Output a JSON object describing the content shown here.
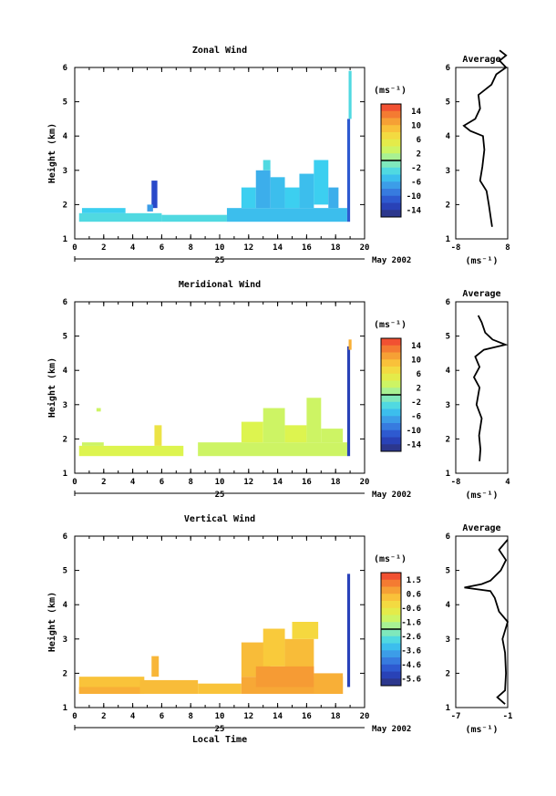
{
  "chart_data": [
    {
      "type": "heatmap",
      "title": "Zonal Wind",
      "ylabel": "Height (km)",
      "xlabel": "",
      "xlim": [
        0,
        20
      ],
      "ylim": [
        1,
        6
      ],
      "x_ticks": [
        "0",
        "2",
        "4",
        "6",
        "8",
        "10",
        "12",
        "14",
        "16",
        "18",
        "20"
      ],
      "y_ticks": [
        "1",
        "2",
        "3",
        "4",
        "5",
        "6"
      ],
      "day_label": "25",
      "date_label": "May 2002",
      "colorbar": {
        "unit": "(ms⁻¹)",
        "ticks": [
          "14",
          "10",
          "6",
          "2",
          "-2",
          "-6",
          "-10",
          "-14"
        ],
        "range": [
          -16,
          16
        ]
      },
      "profile": {
        "title": "Average",
        "xlabel": "(ms⁻¹)",
        "x_ticks": [
          "-8",
          "8"
        ],
        "xlim": [
          -8,
          8
        ],
        "y_ticks": [
          "1",
          "2",
          "3",
          "4",
          "5",
          "6"
        ],
        "ylim": [
          1,
          6
        ],
        "points": [
          [
            3.2,
            1.35
          ],
          [
            2.8,
            1.6
          ],
          [
            2.2,
            2.0
          ],
          [
            1.5,
            2.4
          ],
          [
            -0.5,
            2.7
          ],
          [
            0.2,
            3.1
          ],
          [
            0.8,
            3.6
          ],
          [
            0.4,
            4.0
          ],
          [
            -3.5,
            4.15
          ],
          [
            -5.5,
            4.3
          ],
          [
            -2.0,
            4.5
          ],
          [
            -0.5,
            4.8
          ],
          [
            -1.0,
            5.2
          ],
          [
            3.0,
            5.5
          ],
          [
            4.5,
            5.8
          ],
          [
            7.5,
            6.0
          ],
          [
            5.5,
            6.2
          ],
          [
            7.5,
            6.35
          ],
          [
            5.5,
            6.5
          ]
        ]
      },
      "rects": [
        {
          "x0": 0.3,
          "x1": 6.0,
          "y0": 1.5,
          "y1": 1.75,
          "v": -3
        },
        {
          "x0": 0.5,
          "x1": 3.5,
          "y0": 1.75,
          "y1": 1.9,
          "v": -4
        },
        {
          "x0": 5.3,
          "x1": 5.7,
          "y0": 1.9,
          "y1": 2.7,
          "v": -12
        },
        {
          "x0": 5.0,
          "x1": 5.4,
          "y0": 1.8,
          "y1": 2.0,
          "v": -7
        },
        {
          "x0": 6.0,
          "x1": 10.5,
          "y0": 1.5,
          "y1": 1.7,
          "v": -3
        },
        {
          "x0": 10.5,
          "x1": 18.8,
          "y0": 1.5,
          "y1": 1.9,
          "v": -5
        },
        {
          "x0": 11.5,
          "x1": 12.5,
          "y0": 1.9,
          "y1": 2.5,
          "v": -4
        },
        {
          "x0": 12.5,
          "x1": 13.5,
          "y0": 1.9,
          "y1": 3.0,
          "v": -6
        },
        {
          "x0": 13.5,
          "x1": 14.5,
          "y0": 1.9,
          "y1": 2.8,
          "v": -5
        },
        {
          "x0": 14.5,
          "x1": 15.5,
          "y0": 1.9,
          "y1": 2.5,
          "v": -4
        },
        {
          "x0": 15.5,
          "x1": 16.5,
          "y0": 1.9,
          "y1": 2.9,
          "v": -5
        },
        {
          "x0": 16.5,
          "x1": 17.5,
          "y0": 2.0,
          "y1": 3.3,
          "v": -4
        },
        {
          "x0": 17.5,
          "x1": 18.2,
          "y0": 1.9,
          "y1": 2.5,
          "v": -6
        },
        {
          "x0": 13.0,
          "x1": 13.5,
          "y0": 3.0,
          "y1": 3.3,
          "v": -3
        },
        {
          "x0": 18.8,
          "x1": 19.0,
          "y0": 1.5,
          "y1": 4.5,
          "v": -11
        },
        {
          "x0": 18.9,
          "x1": 19.1,
          "y0": 4.5,
          "y1": 5.9,
          "v": -3
        }
      ]
    },
    {
      "type": "heatmap",
      "title": "Meridional Wind",
      "ylabel": "Height (km)",
      "xlabel": "",
      "xlim": [
        0,
        20
      ],
      "ylim": [
        1,
        6
      ],
      "x_ticks": [
        "0",
        "2",
        "4",
        "6",
        "8",
        "10",
        "12",
        "14",
        "16",
        "18",
        "20"
      ],
      "y_ticks": [
        "1",
        "2",
        "3",
        "4",
        "5",
        "6"
      ],
      "day_label": "25",
      "date_label": "May 2002",
      "colorbar": {
        "unit": "(ms⁻¹)",
        "ticks": [
          "14",
          "10",
          "6",
          "2",
          "-2",
          "-6",
          "-10",
          "-14"
        ],
        "range": [
          -16,
          16
        ]
      },
      "profile": {
        "title": "Average",
        "xlabel": "(ms⁻¹)",
        "x_ticks": [
          "-8",
          "4"
        ],
        "xlim": [
          -8,
          4
        ],
        "y_ticks": [
          "1",
          "2",
          "3",
          "4",
          "5",
          "6"
        ],
        "ylim": [
          1,
          6
        ],
        "points": [
          [
            -2.5,
            1.35
          ],
          [
            -2.3,
            1.7
          ],
          [
            -2.6,
            2.1
          ],
          [
            -2.0,
            2.6
          ],
          [
            -3.2,
            3.0
          ],
          [
            -2.5,
            3.5
          ],
          [
            -3.8,
            3.8
          ],
          [
            -2.5,
            4.1
          ],
          [
            -3.5,
            4.4
          ],
          [
            -1.5,
            4.6
          ],
          [
            3.5,
            4.75
          ],
          [
            0.5,
            4.9
          ],
          [
            -1.2,
            5.1
          ],
          [
            -2.0,
            5.4
          ],
          [
            -2.8,
            5.6
          ]
        ]
      },
      "rects": [
        {
          "x0": 0.3,
          "x1": 7.5,
          "y0": 1.5,
          "y1": 1.8,
          "v": 4
        },
        {
          "x0": 0.5,
          "x1": 2.0,
          "y0": 1.8,
          "y1": 1.9,
          "v": 3
        },
        {
          "x0": 5.5,
          "x1": 6.0,
          "y0": 1.8,
          "y1": 2.4,
          "v": 6
        },
        {
          "x0": 1.5,
          "x1": 1.8,
          "y0": 2.8,
          "y1": 2.9,
          "v": 3
        },
        {
          "x0": 8.5,
          "x1": 18.8,
          "y0": 1.5,
          "y1": 1.9,
          "v": 3
        },
        {
          "x0": 11.5,
          "x1": 13.0,
          "y0": 1.9,
          "y1": 2.5,
          "v": 4
        },
        {
          "x0": 13.0,
          "x1": 14.5,
          "y0": 1.9,
          "y1": 2.9,
          "v": 3
        },
        {
          "x0": 14.5,
          "x1": 16.0,
          "y0": 1.9,
          "y1": 2.4,
          "v": 4
        },
        {
          "x0": 16.0,
          "x1": 17.0,
          "y0": 1.9,
          "y1": 3.2,
          "v": 3
        },
        {
          "x0": 17.0,
          "x1": 18.5,
          "y0": 1.9,
          "y1": 2.3,
          "v": 3
        },
        {
          "x0": 18.8,
          "x1": 19.0,
          "y0": 1.5,
          "y1": 4.7,
          "v": -13
        },
        {
          "x0": 18.9,
          "x1": 19.1,
          "y0": 4.6,
          "y1": 4.9,
          "v": 10
        }
      ]
    },
    {
      "type": "heatmap",
      "title": "Vertical Wind",
      "ylabel": "Height (km)",
      "xlabel": "Local Time",
      "xlim": [
        0,
        20
      ],
      "ylim": [
        1,
        6
      ],
      "x_ticks": [
        "0",
        "2",
        "4",
        "6",
        "8",
        "10",
        "12",
        "14",
        "16",
        "18",
        "20"
      ],
      "y_ticks": [
        "1",
        "2",
        "3",
        "4",
        "5",
        "6"
      ],
      "day_label": "25",
      "date_label": "May 2002",
      "colorbar": {
        "unit": "(ms⁻¹)",
        "ticks": [
          "1.5",
          "0.6",
          "-0.6",
          "-1.6",
          "-2.6",
          "-3.6",
          "-4.6",
          "-5.6"
        ],
        "range": [
          -6.1,
          2.0
        ]
      },
      "profile": {
        "title": "Average",
        "xlabel": "(ms⁻¹)",
        "x_ticks": [
          "-7",
          "-1"
        ],
        "xlim": [
          -7,
          -1
        ],
        "y_ticks": [
          "1",
          "2",
          "3",
          "4",
          "5",
          "6"
        ],
        "ylim": [
          1,
          6
        ],
        "points": [
          [
            -1.3,
            1.1
          ],
          [
            -2.2,
            1.3
          ],
          [
            -1.3,
            1.5
          ],
          [
            -1.2,
            2.0
          ],
          [
            -1.3,
            2.6
          ],
          [
            -1.6,
            3.0
          ],
          [
            -1.0,
            3.5
          ],
          [
            -2.0,
            3.8
          ],
          [
            -2.5,
            4.2
          ],
          [
            -3.0,
            4.4
          ],
          [
            -6.0,
            4.5
          ],
          [
            -4.0,
            4.6
          ],
          [
            -3.0,
            4.7
          ],
          [
            -1.8,
            5.0
          ],
          [
            -1.2,
            5.3
          ],
          [
            -2.0,
            5.6
          ],
          [
            -1.0,
            5.9
          ]
        ]
      },
      "rects": [
        {
          "x0": 0.3,
          "x1": 4.8,
          "y0": 1.4,
          "y1": 1.9,
          "v": 0.2
        },
        {
          "x0": 0.3,
          "x1": 4.5,
          "y0": 1.4,
          "y1": 1.6,
          "v": 0.5
        },
        {
          "x0": 5.3,
          "x1": 5.8,
          "y0": 1.9,
          "y1": 2.5,
          "v": 0.4
        },
        {
          "x0": 4.5,
          "x1": 8.5,
          "y0": 1.4,
          "y1": 1.8,
          "v": 0.3
        },
        {
          "x0": 8.5,
          "x1": 11.5,
          "y0": 1.4,
          "y1": 1.7,
          "v": 0.2
        },
        {
          "x0": 11.5,
          "x1": 18.5,
          "y0": 1.4,
          "y1": 1.9,
          "v": 0.6
        },
        {
          "x0": 11.5,
          "x1": 13.5,
          "y0": 1.9,
          "y1": 2.9,
          "v": 0.3
        },
        {
          "x0": 13.0,
          "x1": 14.5,
          "y0": 2.2,
          "y1": 3.3,
          "v": 0.1
        },
        {
          "x0": 14.5,
          "x1": 16.5,
          "y0": 1.9,
          "y1": 3.0,
          "v": 0.3
        },
        {
          "x0": 15.0,
          "x1": 16.8,
          "y0": 3.0,
          "y1": 3.5,
          "v": -0.2
        },
        {
          "x0": 12.5,
          "x1": 16.5,
          "y0": 1.6,
          "y1": 2.2,
          "v": 0.8
        },
        {
          "x0": 16.5,
          "x1": 18.5,
          "y0": 1.4,
          "y1": 2.0,
          "v": 0.5
        },
        {
          "x0": 18.8,
          "x1": 19.0,
          "y0": 1.6,
          "y1": 4.9,
          "v": -5.3
        }
      ]
    }
  ]
}
